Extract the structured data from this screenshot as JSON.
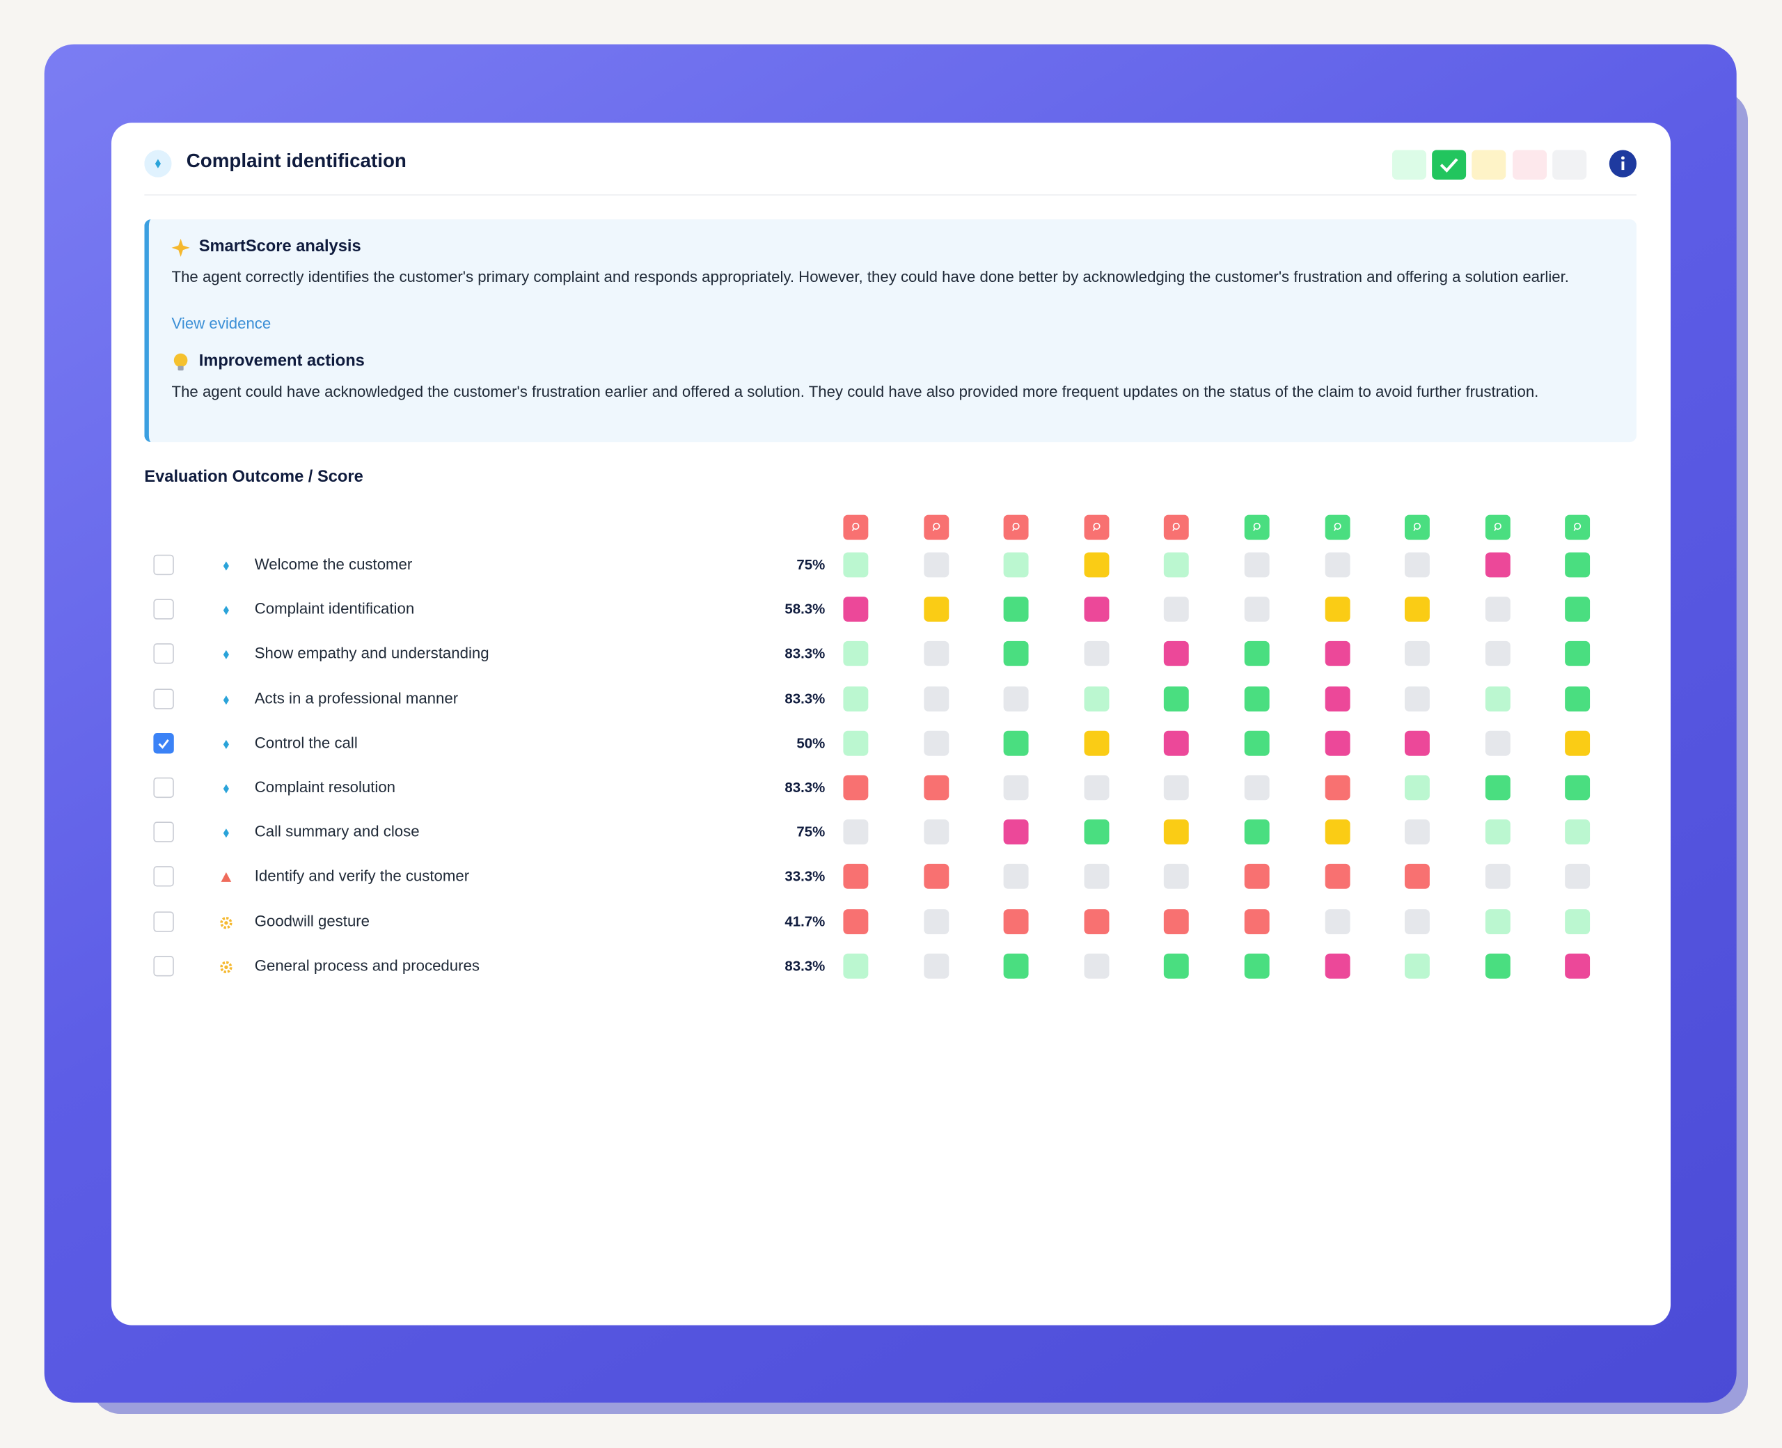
{
  "header": {
    "title": "Complaint identification"
  },
  "analysis": {
    "title": "SmartScore analysis",
    "text": "The agent correctly identifies the customer's primary complaint and responds appropriately. However, they could have done better by acknowledging the customer's frustration and offering a solution earlier.",
    "link": "View evidence"
  },
  "improvement": {
    "title": "Improvement actions",
    "text": "The agent could have acknowledged the customer's frustration earlier and offered a solution. They could have also provided more frequent updates on the status of the claim to avoid further frustration."
  },
  "evaluation": {
    "title": "Evaluation Outcome / Score",
    "palette": {
      "pass": "#4ade80",
      "partial": "#bbf7d0",
      "na": "#e5e7eb",
      "warn": "#facc15",
      "fail": "#ec4899",
      "miss": "#f87171"
    },
    "column_markers": [
      "miss",
      "miss",
      "miss",
      "miss",
      "miss",
      "pass",
      "pass",
      "pass",
      "pass",
      "pass"
    ],
    "rows": [
      {
        "label": "Welcome the customer",
        "score": "75%",
        "icon": "diamond",
        "checked": false,
        "cells": [
          "partial",
          "na",
          "partial",
          "warn",
          "partial",
          "na",
          "na",
          "na",
          "fail",
          "pass"
        ]
      },
      {
        "label": "Complaint identification",
        "score": "58.3%",
        "icon": "diamond",
        "checked": false,
        "cells": [
          "fail",
          "warn",
          "pass",
          "fail",
          "na",
          "na",
          "warn",
          "warn",
          "na",
          "pass"
        ]
      },
      {
        "label": "Show empathy and understanding",
        "score": "83.3%",
        "icon": "diamond",
        "checked": false,
        "cells": [
          "partial",
          "na",
          "pass",
          "na",
          "fail",
          "pass",
          "fail",
          "na",
          "na",
          "pass"
        ]
      },
      {
        "label": "Acts in a professional manner",
        "score": "83.3%",
        "icon": "diamond",
        "checked": false,
        "cells": [
          "partial",
          "na",
          "na",
          "partial",
          "pass",
          "pass",
          "fail",
          "na",
          "partial",
          "pass"
        ]
      },
      {
        "label": "Control the call",
        "score": "50%",
        "icon": "diamond",
        "checked": true,
        "cells": [
          "partial",
          "na",
          "pass",
          "warn",
          "fail",
          "pass",
          "fail",
          "fail",
          "na",
          "warn"
        ]
      },
      {
        "label": "Complaint resolution",
        "score": "83.3%",
        "icon": "diamond",
        "checked": false,
        "cells": [
          "miss",
          "miss",
          "na",
          "na",
          "na",
          "na",
          "miss",
          "partial",
          "pass",
          "pass"
        ]
      },
      {
        "label": "Call summary and close",
        "score": "75%",
        "icon": "diamond",
        "checked": false,
        "cells": [
          "na",
          "na",
          "fail",
          "pass",
          "warn",
          "pass",
          "warn",
          "na",
          "partial",
          "partial"
        ]
      },
      {
        "label": "Identify and verify the customer",
        "score": "33.3%",
        "icon": "triangle",
        "checked": false,
        "cells": [
          "miss",
          "miss",
          "na",
          "na",
          "na",
          "miss",
          "miss",
          "miss",
          "na",
          "na"
        ]
      },
      {
        "label": "Goodwill gesture",
        "score": "41.7%",
        "icon": "gear",
        "checked": false,
        "cells": [
          "miss",
          "na",
          "miss",
          "miss",
          "miss",
          "miss",
          "na",
          "na",
          "partial",
          "partial"
        ]
      },
      {
        "label": "General process and procedures",
        "score": "83.3%",
        "icon": "gear",
        "checked": false,
        "cells": [
          "partial",
          "na",
          "pass",
          "na",
          "pass",
          "pass",
          "fail",
          "partial",
          "pass",
          "fail"
        ]
      }
    ]
  }
}
